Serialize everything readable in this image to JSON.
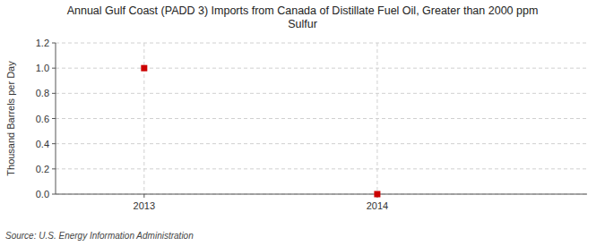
{
  "chart_data": {
    "type": "scatter",
    "title": "Annual Gulf Coast (PADD 3) Imports from Canada of Distillate Fuel Oil, Greater than 2000 ppm\nSulfur",
    "y_label": "Thousand Barrels per Day",
    "source": "Source: U.S. Energy Information Administration",
    "x": [
      2013,
      2014
    ],
    "values": [
      1.0,
      0.0
    ],
    "color": "#cc0000",
    "marker": "square",
    "xlim": [
      2012.62,
      2014.9
    ],
    "xticks": [
      2013,
      2014
    ],
    "ylim": [
      0.0,
      1.2
    ],
    "yticks": [
      {
        "value": 0.0,
        "label": "0.0"
      },
      {
        "value": 0.2,
        "label": "0.2"
      },
      {
        "value": 0.4,
        "label": "0.4"
      },
      {
        "value": 0.6,
        "label": "0.6"
      },
      {
        "value": 0.8,
        "label": "0.8"
      },
      {
        "value": 1.0,
        "label": "1.0"
      },
      {
        "value": 1.2,
        "label": "1.2"
      }
    ],
    "grid": true
  }
}
